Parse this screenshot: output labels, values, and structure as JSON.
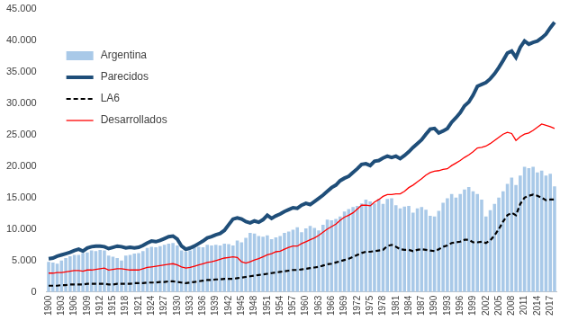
{
  "chart_data": {
    "type": "bar",
    "categories": [
      "1900",
      null,
      null,
      "1903",
      null,
      null,
      "1906",
      null,
      null,
      "1909",
      null,
      null,
      "1912",
      null,
      null,
      "1915",
      null,
      null,
      "1918",
      null,
      null,
      "1921",
      null,
      null,
      "1924",
      null,
      null,
      "1927",
      null,
      null,
      "1930",
      null,
      null,
      "1933",
      null,
      null,
      "1936",
      null,
      null,
      "1939",
      null,
      null,
      "1942",
      null,
      null,
      "1945",
      null,
      null,
      "1948",
      null,
      null,
      "1951",
      null,
      null,
      "1954",
      null,
      null,
      "1957",
      null,
      null,
      "1960",
      null,
      null,
      "1963",
      null,
      null,
      "1966",
      null,
      null,
      "1969",
      null,
      null,
      "1972",
      null,
      null,
      "1975",
      null,
      null,
      "1978",
      null,
      null,
      "1981",
      null,
      null,
      "1984",
      null,
      null,
      "1987",
      null,
      null,
      "1990",
      null,
      null,
      "1993",
      null,
      null,
      "1996",
      null,
      null,
      "1999",
      null,
      null,
      "2002",
      null,
      null,
      "2005",
      null,
      null,
      "2008",
      null,
      null,
      "2011",
      null,
      null,
      "2014",
      null,
      null,
      "2017",
      null
    ],
    "series": [
      {
        "name": "Argentina",
        "type": "bar",
        "color": "#a9c9e8",
        "values": [
          4800,
          4700,
          4500,
          5000,
          5400,
          5700,
          5900,
          5900,
          6200,
          6300,
          6600,
          6500,
          6700,
          6600,
          5800,
          5600,
          5400,
          5000,
          5800,
          5900,
          6100,
          6200,
          6500,
          7000,
          7200,
          7100,
          7300,
          7500,
          7700,
          7800,
          7400,
          6600,
          6400,
          6600,
          7000,
          7200,
          7100,
          7500,
          7400,
          7500,
          7400,
          7700,
          7600,
          7400,
          8200,
          7900,
          8600,
          9400,
          9300,
          8900,
          8800,
          9000,
          8400,
          8700,
          8900,
          9400,
          9600,
          9900,
          10300,
          9500,
          10100,
          10500,
          10200,
          9800,
          10700,
          11500,
          11400,
          11600,
          12000,
          12800,
          13200,
          13500,
          13700,
          14100,
          14700,
          14400,
          14100,
          14800,
          14000,
          14800,
          14900,
          13800,
          13300,
          13600,
          13700,
          12600,
          13300,
          13500,
          13100,
          12100,
          12000,
          12900,
          14200,
          14900,
          15600,
          15000,
          15600,
          16300,
          16700,
          16000,
          15600,
          14700,
          12000,
          13000,
          14000,
          15000,
          16000,
          17200,
          18200,
          17000,
          18500,
          19900,
          19700,
          19900,
          19000,
          19300,
          18500,
          18800,
          16800
        ]
      },
      {
        "name": "Parecidos",
        "type": "line",
        "line_style": "solid",
        "color": "#1f4e79",
        "values": [
          5300,
          5400,
          5700,
          5900,
          6100,
          6300,
          6600,
          6800,
          6500,
          7000,
          7200,
          7300,
          7300,
          7200,
          6900,
          7100,
          7300,
          7200,
          7000,
          7100,
          7000,
          7100,
          7400,
          7800,
          8100,
          8000,
          8200,
          8500,
          8800,
          8900,
          8400,
          7300,
          6800,
          7000,
          7300,
          7700,
          8100,
          8600,
          8800,
          9100,
          9300,
          9800,
          10700,
          11600,
          11800,
          11600,
          11200,
          11000,
          11300,
          11100,
          11500,
          12200,
          11700,
          12100,
          12400,
          12800,
          13100,
          13400,
          13300,
          13800,
          14100,
          13900,
          14400,
          14900,
          15400,
          16000,
          16600,
          17000,
          17700,
          18100,
          18400,
          19000,
          19600,
          20300,
          20400,
          20100,
          20800,
          20900,
          21300,
          21600,
          21400,
          21600,
          21200,
          21700,
          22300,
          23000,
          23600,
          24200,
          25100,
          25900,
          26000,
          25300,
          25600,
          26000,
          27000,
          27700,
          28500,
          29600,
          30200,
          31300,
          32700,
          33000,
          33300,
          33900,
          34700,
          35700,
          36800,
          38000,
          38300,
          37300,
          38900,
          39900,
          39400,
          39700,
          39900,
          40400,
          41000,
          42000,
          42900
        ]
      },
      {
        "name": "LA6",
        "type": "line",
        "line_style": "dashed",
        "color": "#000000",
        "values": [
          1000,
          1000,
          1000,
          1100,
          1100,
          1200,
          1200,
          1200,
          1200,
          1300,
          1300,
          1300,
          1300,
          1300,
          1200,
          1200,
          1300,
          1300,
          1300,
          1300,
          1400,
          1400,
          1400,
          1500,
          1500,
          1500,
          1600,
          1600,
          1700,
          1700,
          1600,
          1500,
          1400,
          1500,
          1600,
          1700,
          1800,
          1900,
          1900,
          2000,
          2000,
          2100,
          2100,
          2100,
          2200,
          2300,
          2400,
          2500,
          2600,
          2700,
          2800,
          2900,
          3000,
          3100,
          3200,
          3300,
          3400,
          3500,
          3500,
          3600,
          3700,
          3800,
          3900,
          4000,
          4200,
          4400,
          4500,
          4700,
          4900,
          5100,
          5300,
          5600,
          5900,
          6200,
          6400,
          6400,
          6500,
          6600,
          6700,
          7300,
          7500,
          7200,
          6800,
          6700,
          6700,
          6500,
          6700,
          6800,
          6700,
          6600,
          6500,
          6800,
          7200,
          7400,
          7800,
          7900,
          8000,
          8300,
          8300,
          7900,
          7900,
          8000,
          7800,
          8200,
          9000,
          10000,
          11200,
          12200,
          12600,
          12200,
          14000,
          15000,
          15300,
          15500,
          15300,
          15000,
          14600,
          14700,
          14700
        ]
      },
      {
        "name": "Desarrollados",
        "type": "line",
        "line_style": "solid",
        "color": "#ff0000",
        "values": [
          3000,
          3000,
          3100,
          3100,
          3200,
          3300,
          3400,
          3400,
          3300,
          3500,
          3500,
          3600,
          3700,
          3800,
          3500,
          3600,
          3700,
          3700,
          3600,
          3500,
          3500,
          3500,
          3700,
          3900,
          4000,
          4100,
          4200,
          4300,
          4400,
          4500,
          4300,
          4000,
          3800,
          3900,
          4100,
          4300,
          4500,
          4700,
          4800,
          5000,
          5200,
          5400,
          5500,
          5600,
          5500,
          4800,
          4600,
          4800,
          5100,
          5300,
          5600,
          5900,
          6100,
          6400,
          6500,
          6800,
          7100,
          7300,
          7300,
          7700,
          8000,
          8300,
          8600,
          9000,
          9500,
          10000,
          10400,
          10800,
          11400,
          11900,
          12200,
          12600,
          13200,
          13800,
          13800,
          13700,
          14300,
          14700,
          15200,
          15500,
          15500,
          15600,
          15600,
          16000,
          16600,
          17000,
          17500,
          18000,
          18600,
          19000,
          19200,
          19300,
          19500,
          19600,
          20100,
          20500,
          20900,
          21400,
          21800,
          22300,
          22900,
          23000,
          23200,
          23600,
          24100,
          24600,
          25100,
          25400,
          25200,
          24100,
          24700,
          25100,
          25300,
          25700,
          26200,
          26700,
          26500,
          26300,
          26000
        ]
      }
    ],
    "ylim": [
      0,
      45000
    ],
    "yticks": [
      0,
      {
        "value": 5000,
        "label": "5.000"
      },
      {
        "value": 10000,
        "label": "10.000"
      },
      {
        "value": 15000,
        "label": "15.000"
      },
      {
        "value": 20000,
        "label": "20.000"
      },
      {
        "value": 25000,
        "label": "25.000"
      },
      {
        "value": 30000,
        "label": "30.000"
      },
      {
        "value": 35000,
        "label": "35.000"
      },
      {
        "value": 40000,
        "label": "40.000"
      },
      {
        "value": 45000,
        "label": "45.000"
      }
    ],
    "grid": false,
    "legend": "upper left"
  }
}
